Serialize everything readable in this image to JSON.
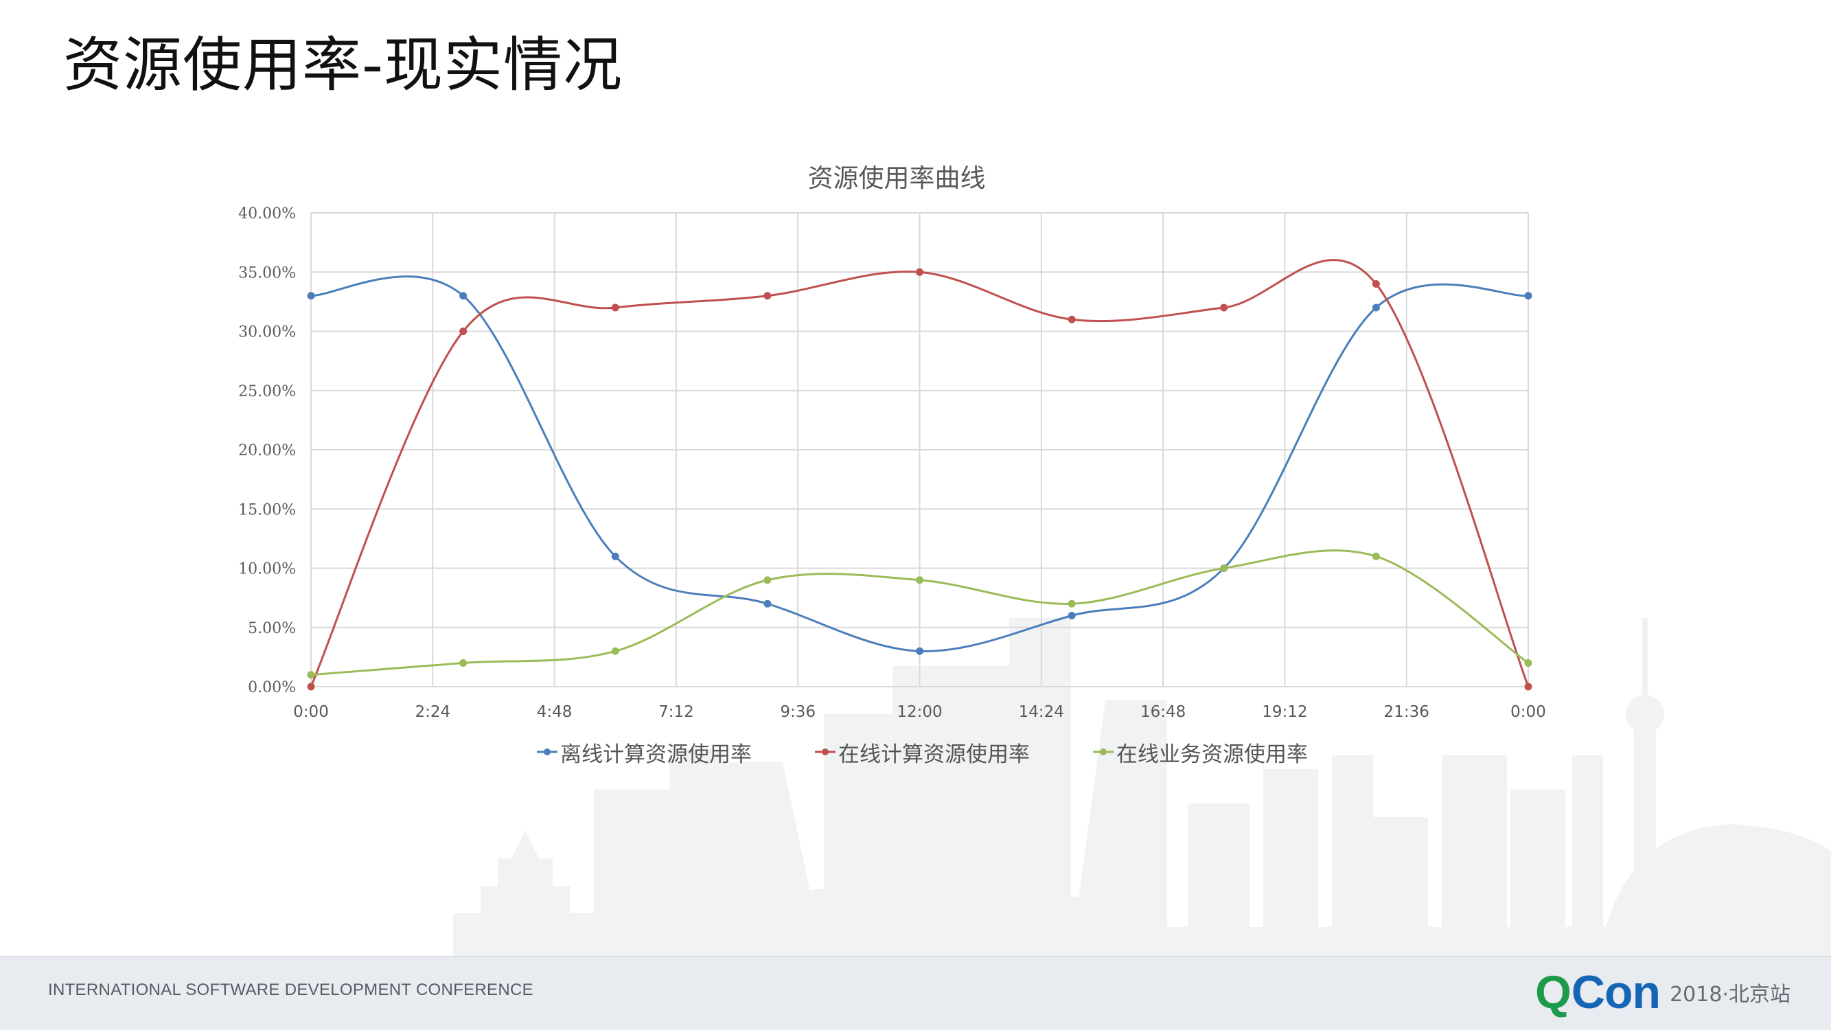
{
  "slide": {
    "title": "资源使用率-现实情况"
  },
  "footer": {
    "conference_name": "INTERNATIONAL SOFTWARE DEVELOPMENT CONFERENCE",
    "logo_q": "Q",
    "logo_con": "Con",
    "logo_edition": "2018·北京站"
  },
  "colors": {
    "offline_compute": "#4a7ebb",
    "online_compute": "#c0504d",
    "online_business": "#9bbb59",
    "grid": "#d9d9d9",
    "axis_text": "#595959",
    "skyline": "#f1f2f4"
  },
  "chart_data": {
    "type": "line",
    "title": "资源使用率曲线",
    "xlabel": "",
    "ylabel": "",
    "x_tick_labels": [
      "0:00",
      "2:24",
      "4:48",
      "7:12",
      "9:36",
      "12:00",
      "14:24",
      "16:48",
      "19:12",
      "21:36",
      "0:00"
    ],
    "y_tick_labels": [
      "0.00%",
      "5.00%",
      "10.00%",
      "15.00%",
      "20.00%",
      "25.00%",
      "30.00%",
      "35.00%",
      "40.00%"
    ],
    "x_hours": [
      0,
      3,
      6,
      9,
      12,
      15,
      18,
      21,
      24
    ],
    "xlim_hours": [
      0,
      24
    ],
    "ylim": [
      0,
      40
    ],
    "grid": true,
    "smooth": true,
    "legend_position": "bottom",
    "series": [
      {
        "name": "离线计算资源使用率",
        "color_key": "offline_compute",
        "values": [
          33,
          33,
          11,
          7,
          3,
          6,
          10,
          32,
          33
        ]
      },
      {
        "name": "在线计算资源使用率",
        "color_key": "online_compute",
        "values": [
          0,
          30,
          32,
          33,
          35,
          31,
          32,
          34,
          0
        ]
      },
      {
        "name": "在线业务资源使用率",
        "color_key": "online_business",
        "values": [
          1,
          2,
          3,
          9,
          9,
          7,
          10,
          11,
          2
        ]
      }
    ]
  }
}
